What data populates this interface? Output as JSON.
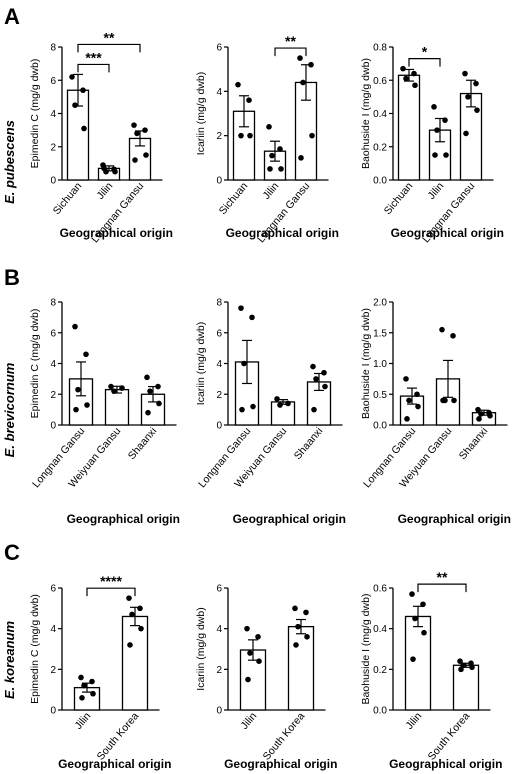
{
  "panels": [
    {
      "letter": "A",
      "species": "E. pubescens"
    },
    {
      "letter": "B",
      "species": "E. brevicornum"
    },
    {
      "letter": "C",
      "species": "E. koreanum"
    }
  ],
  "chart_data": [
    {
      "type": "bar",
      "panel": "A",
      "xlabel": "Geographical origin",
      "ylabel": "Epimedin C (mg/g dwb)",
      "categories": [
        "Sichuan",
        "Jilin",
        "Longnan Gansu"
      ],
      "values": [
        5.4,
        0.7,
        2.5
      ],
      "errors": [
        0.95,
        0.15,
        0.45
      ],
      "points": [
        [
          6.2,
          5.4,
          4.5,
          3.1
        ],
        [
          0.9,
          0.65,
          0.5,
          0.5,
          0.7
        ],
        [
          3.3,
          3.0,
          2.8,
          1.5,
          1.2
        ]
      ],
      "ylim": [
        0,
        8
      ],
      "yticks": [
        0,
        2,
        4,
        6,
        8
      ],
      "significance": [
        {
          "pair": [
            0,
            1
          ],
          "label": "***"
        },
        {
          "pair": [
            0,
            2
          ],
          "label": "**"
        }
      ]
    },
    {
      "type": "bar",
      "panel": "A",
      "xlabel": "Geographical origin",
      "ylabel": "Icariin (mg/g dwb)",
      "categories": [
        "Sichuan",
        "Jilin",
        "Longnan Gansu"
      ],
      "values": [
        3.1,
        1.3,
        4.4
      ],
      "errors": [
        0.7,
        0.45,
        0.8
      ],
      "points": [
        [
          4.3,
          3.6,
          2.0,
          2.0
        ],
        [
          2.4,
          1.4,
          1.1,
          0.5,
          0.5
        ],
        [
          5.5,
          5.2,
          4.4,
          2.0,
          1.0
        ]
      ],
      "ylim": [
        0,
        6
      ],
      "yticks": [
        0,
        2,
        4,
        6
      ],
      "significance": [
        {
          "pair": [
            1,
            2
          ],
          "label": "**"
        }
      ]
    },
    {
      "type": "bar",
      "panel": "A",
      "xlabel": "Geographical origin",
      "ylabel": "Baohuside I (mg/g dwb)",
      "categories": [
        "Sichuan",
        "Jilin",
        "Longnan Gansu"
      ],
      "values": [
        0.63,
        0.3,
        0.52
      ],
      "errors": [
        0.035,
        0.07,
        0.08
      ],
      "points": [
        [
          0.67,
          0.64,
          0.61,
          0.57
        ],
        [
          0.44,
          0.36,
          0.3,
          0.15,
          0.15
        ],
        [
          0.64,
          0.58,
          0.5,
          0.42,
          0.28
        ]
      ],
      "ylim": [
        0,
        0.8
      ],
      "yticks": [
        0.0,
        0.2,
        0.4,
        0.6,
        0.8
      ],
      "significance": [
        {
          "pair": [
            0,
            1
          ],
          "label": "*"
        }
      ]
    },
    {
      "type": "bar",
      "panel": "B",
      "xlabel": "Geographical origin",
      "ylabel": "Epimedin C (mg/g dwb)",
      "categories": [
        "Longnan Gansu",
        "Weiyuan Gansu",
        "Shaanxi"
      ],
      "values": [
        3.0,
        2.3,
        2.0
      ],
      "errors": [
        1.1,
        0.22,
        0.5
      ],
      "points": [
        [
          6.4,
          4.6,
          2.3,
          1.3,
          1.0
        ],
        [
          2.5,
          2.4,
          2.2
        ],
        [
          3.1,
          2.5,
          2.2,
          1.4,
          0.8
        ]
      ],
      "ylim": [
        0,
        8
      ],
      "yticks": [
        0,
        2,
        4,
        6,
        8
      ],
      "significance": []
    },
    {
      "type": "bar",
      "panel": "B",
      "xlabel": "Geographical origin",
      "ylabel": "Icariin (mg/g dwb)",
      "categories": [
        "Longnan Gansu",
        "Weiyuan Gansu",
        "Shaanxi"
      ],
      "values": [
        4.1,
        1.5,
        2.8
      ],
      "errors": [
        1.4,
        0.15,
        0.55
      ],
      "points": [
        [
          7.6,
          7.0,
          4.0,
          1.2,
          1.0
        ],
        [
          1.7,
          1.4,
          1.3
        ],
        [
          3.8,
          3.4,
          3.0,
          2.5,
          1.0
        ]
      ],
      "ylim": [
        0,
        8
      ],
      "yticks": [
        0,
        2,
        4,
        6,
        8
      ],
      "significance": []
    },
    {
      "type": "bar",
      "panel": "B",
      "xlabel": "Geographical origin",
      "ylabel": "Baohuside I (mg/g dwb)",
      "categories": [
        "Longnan Gansu",
        "Weiyuan Gansu",
        "Shaanxi"
      ],
      "values": [
        0.47,
        0.75,
        0.2
      ],
      "errors": [
        0.13,
        0.3,
        0.04
      ],
      "points": [
        [
          0.75,
          0.5,
          0.4,
          0.3,
          0.1
        ],
        [
          1.55,
          1.45,
          0.4,
          0.4,
          0.4
        ],
        [
          0.25,
          0.2,
          0.18,
          0.15,
          0.1
        ]
      ],
      "ylim": [
        0,
        2.0
      ],
      "yticks": [
        0.0,
        0.5,
        1.0,
        1.5,
        2.0
      ],
      "significance": []
    },
    {
      "type": "bar",
      "panel": "C",
      "xlabel": "Geographical origin",
      "ylabel": "Epimedin C (mg/g dwb)",
      "categories": [
        "Jilin",
        "South Korea"
      ],
      "values": [
        1.1,
        4.6
      ],
      "errors": [
        0.22,
        0.45
      ],
      "points": [
        [
          1.6,
          1.4,
          1.2,
          0.8,
          0.6
        ],
        [
          5.5,
          5.0,
          4.7,
          4.0,
          3.2
        ]
      ],
      "ylim": [
        0,
        6
      ],
      "yticks": [
        0,
        2,
        4,
        6
      ],
      "significance": [
        {
          "pair": [
            0,
            1
          ],
          "label": "****"
        }
      ]
    },
    {
      "type": "bar",
      "panel": "C",
      "xlabel": "Geographical origin",
      "ylabel": "Icariin (mg/g dwb)",
      "categories": [
        "Jilin",
        "South Korea"
      ],
      "values": [
        2.95,
        4.1
      ],
      "errors": [
        0.5,
        0.35
      ],
      "points": [
        [
          4.0,
          3.6,
          2.8,
          2.4,
          1.5
        ],
        [
          5.0,
          4.8,
          4.1,
          3.6,
          3.2
        ]
      ],
      "ylim": [
        0,
        6
      ],
      "yticks": [
        0,
        2,
        4,
        6
      ],
      "significance": []
    },
    {
      "type": "bar",
      "panel": "C",
      "xlabel": "Geographical origin",
      "ylabel": "Baohuside I (mg/g dwb)",
      "categories": [
        "Jilin",
        "South Korea"
      ],
      "values": [
        0.46,
        0.22
      ],
      "errors": [
        0.05,
        0.01
      ],
      "points": [
        [
          0.57,
          0.52,
          0.45,
          0.38,
          0.25
        ],
        [
          0.24,
          0.23,
          0.22,
          0.21,
          0.2
        ]
      ],
      "ylim": [
        0,
        0.6
      ],
      "yticks": [
        0.0,
        0.2,
        0.4,
        0.6
      ],
      "significance": [
        {
          "pair": [
            0,
            1
          ],
          "label": "**"
        }
      ]
    }
  ]
}
